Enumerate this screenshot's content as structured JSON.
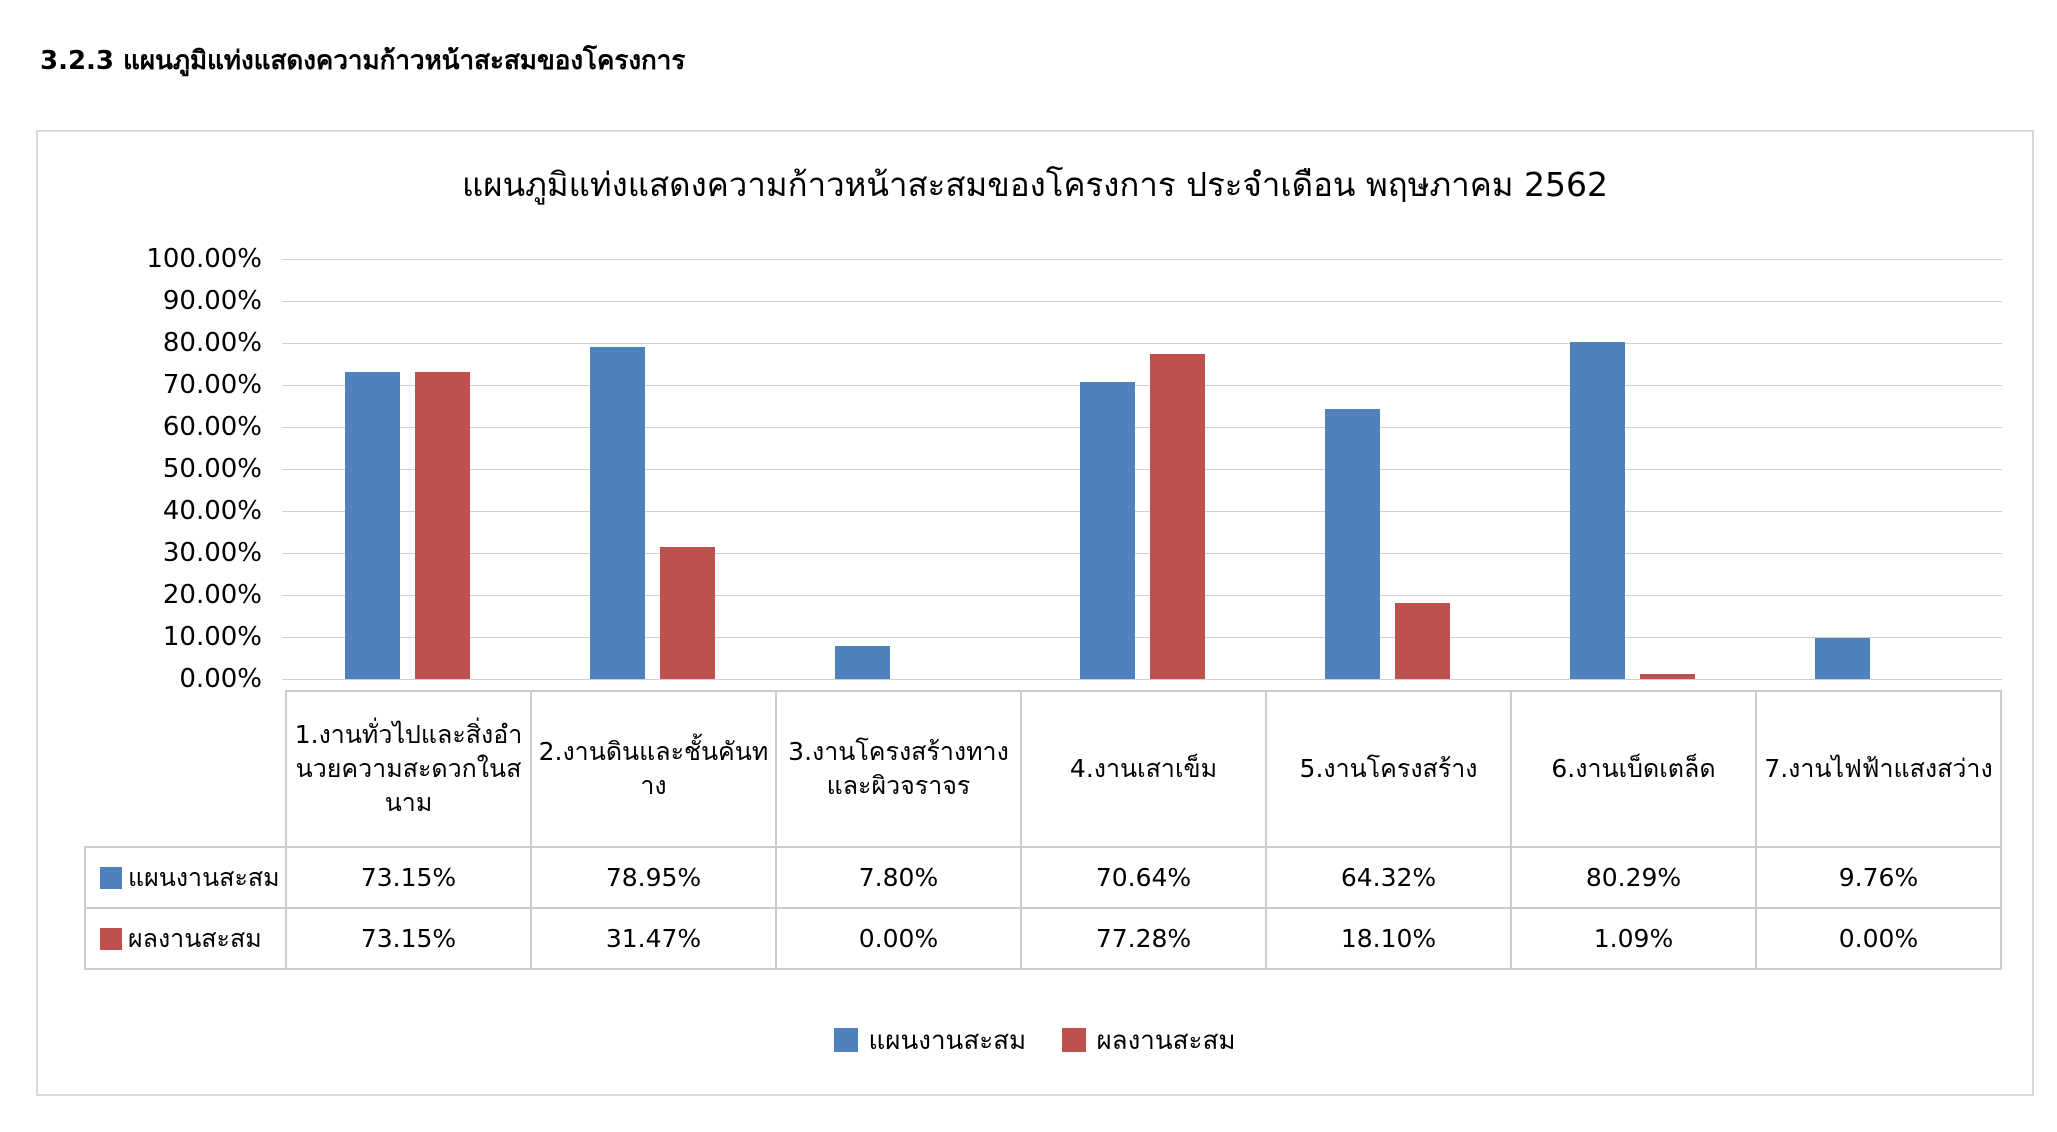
{
  "section_heading": "3.2.3  แผนภูมิแท่งแสดงความก้าวหน้าสะสมของโครงการ",
  "colors": {
    "plan": "#4f81bd",
    "actual": "#c0504d"
  },
  "chart_data": {
    "type": "bar",
    "title": "แผนภูมิแท่งแสดงความก้าวหน้าสะสมของโครงการ ประจำเดือน พฤษภาคม  2562",
    "categories": [
      "1.งานทั่วไปและสิ่งอำนวยความสะดวกในสนาม",
      "2.งานดินและชั้นคันทาง",
      "3.งานโครงสร้างทางและผิวจราจร",
      "4.งานเสาเข็ม",
      "5.งานโครงสร้าง",
      "6.งานเบ็ดเตล็ด",
      "7.งานไฟฟ้าแสงสว่าง"
    ],
    "series": [
      {
        "name": "แผนงานสะสม",
        "values": [
          73.15,
          78.95,
          7.8,
          70.64,
          64.32,
          80.29,
          9.76
        ],
        "labels": [
          "73.15%",
          "78.95%",
          "7.80%",
          "70.64%",
          "64.32%",
          "80.29%",
          "9.76%"
        ]
      },
      {
        "name": "ผลงานสะสม",
        "values": [
          73.15,
          31.47,
          0.0,
          77.28,
          18.1,
          1.09,
          0.0
        ],
        "labels": [
          "73.15%",
          "31.47%",
          "0.00%",
          "77.28%",
          "18.10%",
          "1.09%",
          "0.00%"
        ]
      }
    ],
    "yticks": [
      "0.00%",
      "10.00%",
      "20.00%",
      "30.00%",
      "40.00%",
      "50.00%",
      "60.00%",
      "70.00%",
      "80.00%",
      "90.00%",
      "100.00%"
    ],
    "ylim": [
      0,
      100
    ],
    "grid": true,
    "legend": "bottom"
  }
}
